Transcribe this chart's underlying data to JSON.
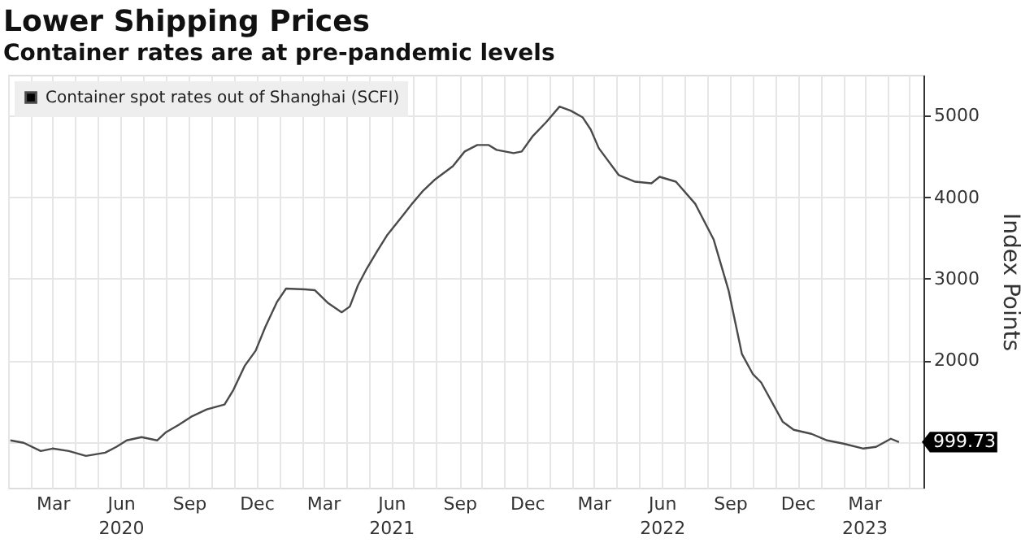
{
  "chart_data": {
    "type": "line",
    "title": "Lower Shipping Prices",
    "subtitle": "Container rates are at pre-pandemic levels",
    "ylabel": "Index Points",
    "x": [
      "2020-01-04",
      "2020-01-22",
      "2020-02-14",
      "2020-03-01",
      "2020-03-23",
      "2020-04-15",
      "2020-05-11",
      "2020-05-26",
      "2020-06-09",
      "2020-06-29",
      "2020-07-20",
      "2020-08-01",
      "2020-08-18",
      "2020-09-04",
      "2020-09-25",
      "2020-10-19",
      "2020-10-31",
      "2020-11-15",
      "2020-11-30",
      "2020-12-13",
      "2020-12-29",
      "2021-01-10",
      "2021-02-05",
      "2021-02-18",
      "2021-03-08",
      "2021-03-26",
      "2021-04-06",
      "2021-04-17",
      "2021-04-28",
      "2021-05-13",
      "2021-05-26",
      "2021-06-16",
      "2021-06-29",
      "2021-07-14",
      "2021-07-29",
      "2021-08-23",
      "2021-09-08",
      "2021-09-25",
      "2021-10-10",
      "2021-10-21",
      "2021-11-13",
      "2021-11-24",
      "2021-12-09",
      "2021-12-27",
      "2022-01-14",
      "2022-01-29",
      "2022-02-14",
      "2022-02-25",
      "2022-03-08",
      "2022-04-04",
      "2022-04-26",
      "2022-05-18",
      "2022-05-29",
      "2022-06-20",
      "2022-07-16",
      "2022-08-10",
      "2022-08-30",
      "2022-09-17",
      "2022-10-02",
      "2022-10-13",
      "2022-11-11",
      "2022-11-26",
      "2022-12-20",
      "2023-01-10",
      "2023-02-01",
      "2023-02-28",
      "2023-03-17",
      "2023-04-06",
      "2023-04-17"
    ],
    "series": [
      {
        "name": "Container spot rates out of Shanghai (SCFI)",
        "color": "#4a4a4a",
        "values": [
          1020,
          990,
          890,
          920,
          890,
          830,
          870,
          940,
          1020,
          1060,
          1020,
          1120,
          1210,
          1310,
          1400,
          1460,
          1640,
          1930,
          2120,
          2410,
          2720,
          2880,
          2870,
          2860,
          2700,
          2590,
          2660,
          2920,
          3110,
          3340,
          3530,
          3770,
          3920,
          4080,
          4210,
          4380,
          4560,
          4640,
          4640,
          4580,
          4540,
          4560,
          4750,
          4920,
          5110,
          5060,
          4980,
          4830,
          4600,
          4270,
          4190,
          4170,
          4250,
          4190,
          3920,
          3480,
          2860,
          2080,
          1830,
          1730,
          1250,
          1150,
          1100,
          1020,
          980,
          920,
          940,
          1040,
          999.73
        ]
      }
    ],
    "annotations": [
      {
        "text": "999.73",
        "x": "2023-04-17",
        "y": 999.73
      }
    ],
    "xlim": [
      "2020-01-01",
      "2023-05-20"
    ],
    "xticks": [
      {
        "value": "2020-01-01",
        "label": null
      },
      {
        "value": "2020-02-01",
        "label": null
      },
      {
        "value": "2020-03-01",
        "label": "Mar"
      },
      {
        "value": "2020-04-01",
        "label": null
      },
      {
        "value": "2020-05-01",
        "label": null
      },
      {
        "value": "2020-06-01",
        "label": "Jun\n2020"
      },
      {
        "value": "2020-07-01",
        "label": null
      },
      {
        "value": "2020-08-01",
        "label": null
      },
      {
        "value": "2020-09-01",
        "label": "Sep"
      },
      {
        "value": "2020-10-01",
        "label": null
      },
      {
        "value": "2020-11-01",
        "label": null
      },
      {
        "value": "2020-12-01",
        "label": "Dec"
      },
      {
        "value": "2021-01-01",
        "label": null
      },
      {
        "value": "2021-02-01",
        "label": null
      },
      {
        "value": "2021-03-01",
        "label": "Mar"
      },
      {
        "value": "2021-04-01",
        "label": null
      },
      {
        "value": "2021-05-01",
        "label": null
      },
      {
        "value": "2021-06-01",
        "label": "Jun\n2021"
      },
      {
        "value": "2021-07-01",
        "label": null
      },
      {
        "value": "2021-08-01",
        "label": null
      },
      {
        "value": "2021-09-01",
        "label": "Sep"
      },
      {
        "value": "2021-10-01",
        "label": null
      },
      {
        "value": "2021-11-01",
        "label": null
      },
      {
        "value": "2021-12-01",
        "label": "Dec"
      },
      {
        "value": "2022-01-01",
        "label": null
      },
      {
        "value": "2022-02-01",
        "label": null
      },
      {
        "value": "2022-03-01",
        "label": "Mar"
      },
      {
        "value": "2022-04-01",
        "label": null
      },
      {
        "value": "2022-05-01",
        "label": null
      },
      {
        "value": "2022-06-01",
        "label": "Jun\n2022"
      },
      {
        "value": "2022-07-01",
        "label": null
      },
      {
        "value": "2022-08-01",
        "label": null
      },
      {
        "value": "2022-09-01",
        "label": "Sep"
      },
      {
        "value": "2022-10-01",
        "label": null
      },
      {
        "value": "2022-11-01",
        "label": null
      },
      {
        "value": "2022-12-01",
        "label": "Dec"
      },
      {
        "value": "2023-01-01",
        "label": null
      },
      {
        "value": "2023-02-01",
        "label": null
      },
      {
        "value": "2023-03-01",
        "label": "Mar\n2023"
      },
      {
        "value": "2023-04-01",
        "label": null
      },
      {
        "value": "2023-05-01",
        "label": null
      }
    ],
    "ylim": [
      440,
      5500
    ],
    "yticks": [
      {
        "value": 1000,
        "label": null
      },
      2000,
      3000,
      4000,
      5000
    ],
    "grid": true,
    "legend": "top left",
    "line_style": "solid",
    "marker": "none"
  }
}
